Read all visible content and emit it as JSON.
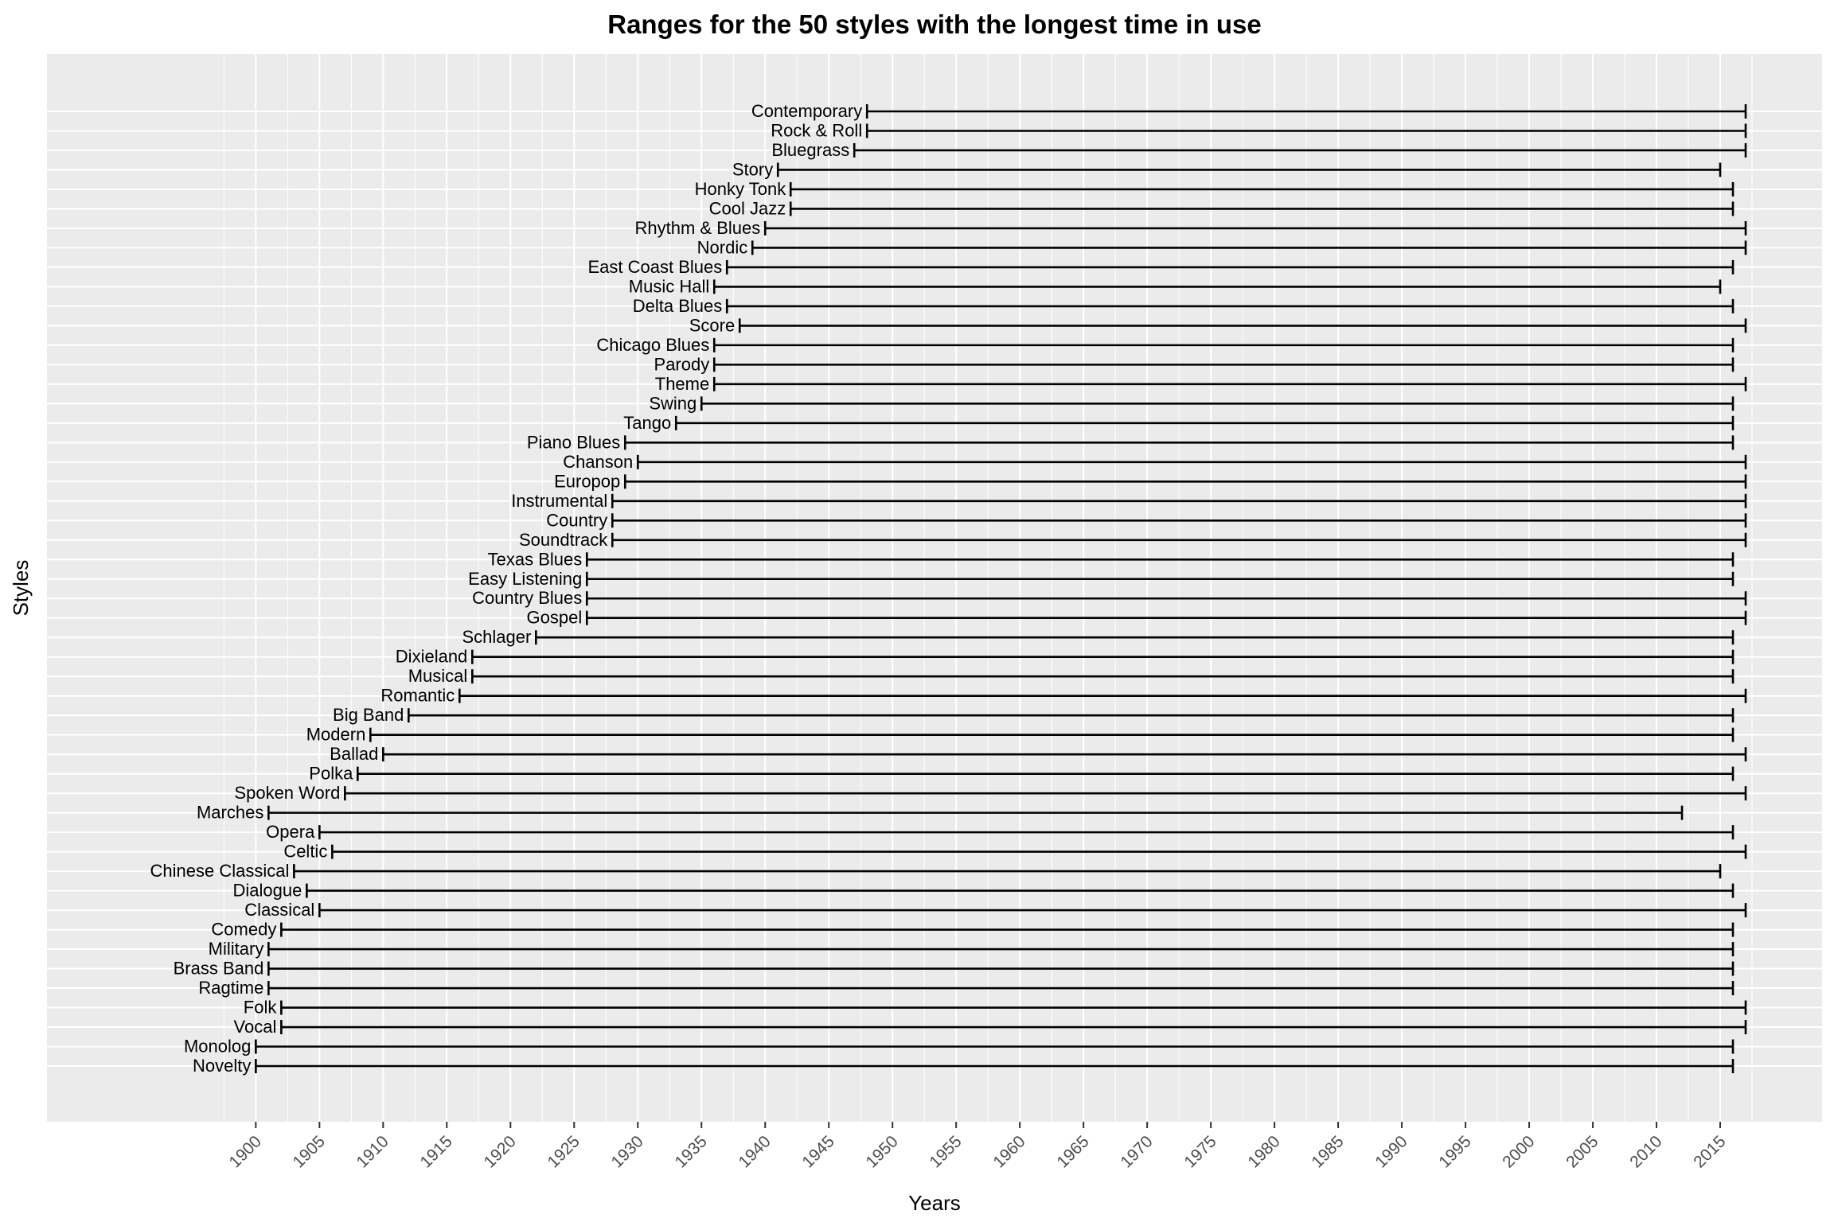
{
  "chart_data": {
    "type": "range",
    "title": "Ranges for the 50 styles with the longest time in use",
    "xlabel": "Years",
    "ylabel": "Styles",
    "xlim": [
      1883.6,
      2023
    ],
    "xticks": [
      1900,
      1905,
      1910,
      1915,
      1920,
      1925,
      1930,
      1935,
      1940,
      1945,
      1950,
      1955,
      1960,
      1965,
      1970,
      1975,
      1980,
      1985,
      1990,
      1995,
      2000,
      2005,
      2010,
      2015
    ],
    "styles": [
      {
        "name": "Contemporary",
        "start": 1948,
        "end": 2017
      },
      {
        "name": "Rock & Roll",
        "start": 1948,
        "end": 2017
      },
      {
        "name": "Bluegrass",
        "start": 1947,
        "end": 2017
      },
      {
        "name": "Story",
        "start": 1941,
        "end": 2015
      },
      {
        "name": "Honky Tonk",
        "start": 1942,
        "end": 2016
      },
      {
        "name": "Cool Jazz",
        "start": 1942,
        "end": 2016
      },
      {
        "name": "Rhythm & Blues",
        "start": 1940,
        "end": 2017
      },
      {
        "name": "Nordic",
        "start": 1939,
        "end": 2017
      },
      {
        "name": "East Coast Blues",
        "start": 1937,
        "end": 2016
      },
      {
        "name": "Music Hall",
        "start": 1936,
        "end": 2015
      },
      {
        "name": "Delta Blues",
        "start": 1937,
        "end": 2016
      },
      {
        "name": "Score",
        "start": 1938,
        "end": 2017
      },
      {
        "name": "Chicago Blues",
        "start": 1936,
        "end": 2016
      },
      {
        "name": "Parody",
        "start": 1936,
        "end": 2016
      },
      {
        "name": "Theme",
        "start": 1936,
        "end": 2017
      },
      {
        "name": "Swing",
        "start": 1935,
        "end": 2016
      },
      {
        "name": "Tango",
        "start": 1933,
        "end": 2016
      },
      {
        "name": "Piano Blues",
        "start": 1929,
        "end": 2016
      },
      {
        "name": "Chanson",
        "start": 1930,
        "end": 2017
      },
      {
        "name": "Europop",
        "start": 1929,
        "end": 2017
      },
      {
        "name": "Instrumental",
        "start": 1928,
        "end": 2017
      },
      {
        "name": "Country",
        "start": 1928,
        "end": 2017
      },
      {
        "name": "Soundtrack",
        "start": 1928,
        "end": 2017
      },
      {
        "name": "Texas Blues",
        "start": 1926,
        "end": 2016
      },
      {
        "name": "Easy Listening",
        "start": 1926,
        "end": 2016
      },
      {
        "name": "Country Blues",
        "start": 1926,
        "end": 2017
      },
      {
        "name": "Gospel",
        "start": 1926,
        "end": 2017
      },
      {
        "name": "Schlager",
        "start": 1922,
        "end": 2016
      },
      {
        "name": "Dixieland",
        "start": 1917,
        "end": 2016
      },
      {
        "name": "Musical",
        "start": 1917,
        "end": 2016
      },
      {
        "name": "Romantic",
        "start": 1916,
        "end": 2017
      },
      {
        "name": "Big Band",
        "start": 1912,
        "end": 2016
      },
      {
        "name": "Modern",
        "start": 1909,
        "end": 2016
      },
      {
        "name": "Ballad",
        "start": 1910,
        "end": 2017
      },
      {
        "name": "Polka",
        "start": 1908,
        "end": 2016
      },
      {
        "name": "Spoken Word",
        "start": 1907,
        "end": 2017
      },
      {
        "name": "Marches",
        "start": 1901,
        "end": 2012
      },
      {
        "name": "Opera",
        "start": 1905,
        "end": 2016
      },
      {
        "name": "Celtic",
        "start": 1906,
        "end": 2017
      },
      {
        "name": "Chinese Classical",
        "start": 1903,
        "end": 2015
      },
      {
        "name": "Dialogue",
        "start": 1904,
        "end": 2016
      },
      {
        "name": "Classical",
        "start": 1905,
        "end": 2017
      },
      {
        "name": "Comedy",
        "start": 1902,
        "end": 2016
      },
      {
        "name": "Military",
        "start": 1901,
        "end": 2016
      },
      {
        "name": "Brass Band",
        "start": 1901,
        "end": 2016
      },
      {
        "name": "Ragtime",
        "start": 1901,
        "end": 2016
      },
      {
        "name": "Folk",
        "start": 1902,
        "end": 2017
      },
      {
        "name": "Vocal",
        "start": 1902,
        "end": 2017
      },
      {
        "name": "Monolog",
        "start": 1900,
        "end": 2016
      },
      {
        "name": "Novelty",
        "start": 1900,
        "end": 2016
      }
    ],
    "colors": {
      "panel": "#ebebeb",
      "grid": "#ffffff",
      "line": "#000000",
      "tick_text": "#4d4d4d"
    }
  }
}
